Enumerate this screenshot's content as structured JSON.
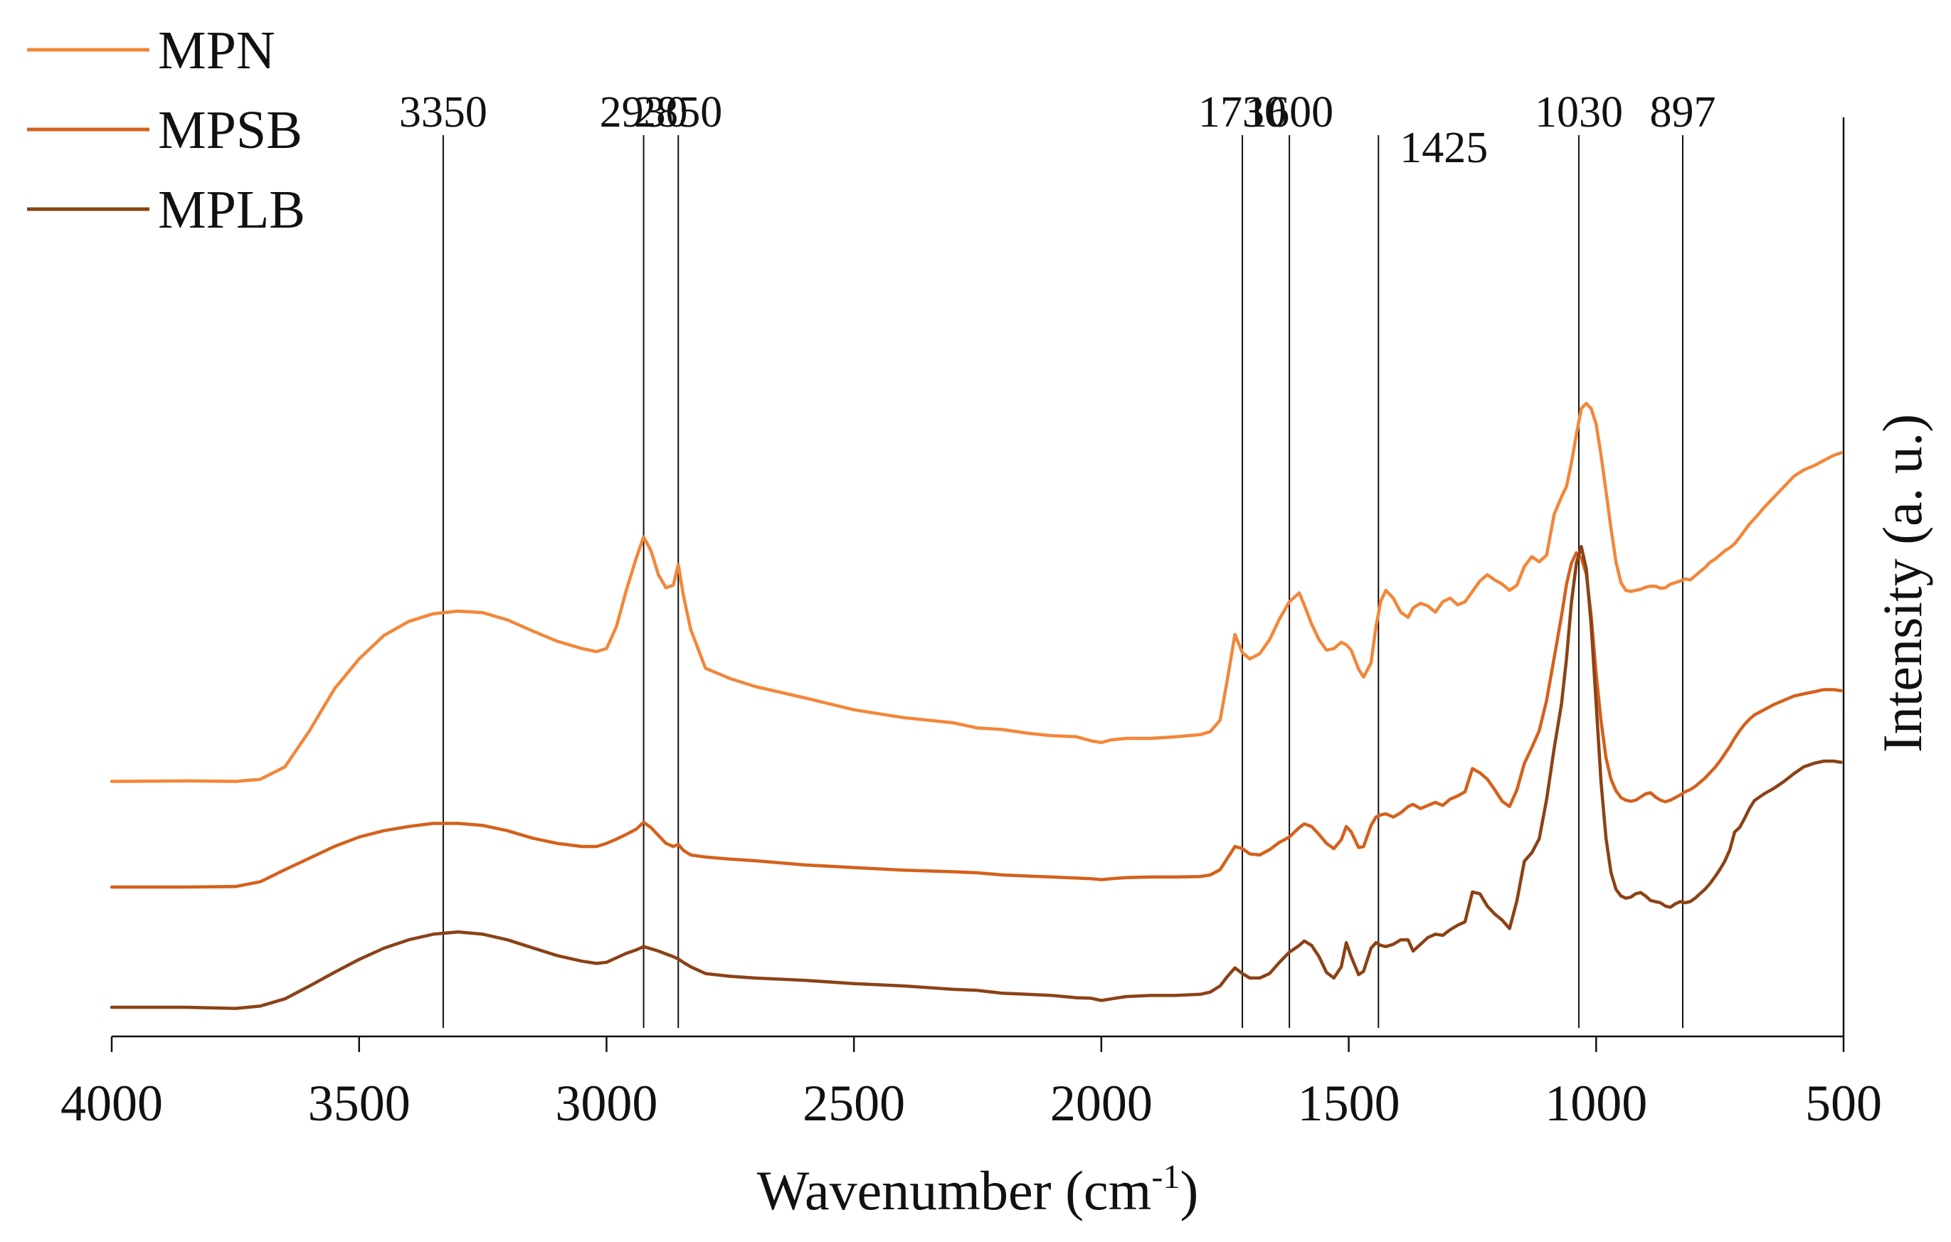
{
  "chart_data": {
    "type": "line",
    "title": "",
    "xlabel": "Wavenumber (cm",
    "xlabel_sup": "-1",
    "xlabel_close": ")",
    "ylabel": "Intensity (a. u.)",
    "xlim": [
      4000,
      500
    ],
    "ylim": [
      0,
      1
    ],
    "x_reversed": true,
    "x_ticks": [
      4000,
      3500,
      3000,
      2500,
      2000,
      1500,
      1000,
      500
    ],
    "x_tick_labels": [
      "4000",
      "3500",
      "3000",
      "2500",
      "2000",
      "1500",
      "1000",
      "500"
    ],
    "legend_position": "top-left",
    "peak_markers": [
      {
        "x": 3330,
        "label": "3350"
      },
      {
        "x": 2925,
        "label": "2930"
      },
      {
        "x": 2855,
        "label": "2850"
      },
      {
        "x": 1715,
        "label": "1730"
      },
      {
        "x": 1620,
        "label": "1600"
      },
      {
        "x": 1440,
        "label": "1425"
      },
      {
        "x": 1035,
        "label": "1030"
      },
      {
        "x": 825,
        "label": "897"
      }
    ],
    "series": [
      {
        "name": "MPN",
        "color": "#F2873A",
        "x": [
          4000,
          3850,
          3750,
          3700,
          3650,
          3600,
          3550,
          3500,
          3450,
          3400,
          3350,
          3300,
          3250,
          3200,
          3150,
          3100,
          3050,
          3020,
          3000,
          2980,
          2960,
          2940,
          2925,
          2910,
          2895,
          2880,
          2865,
          2855,
          2845,
          2830,
          2800,
          2750,
          2700,
          2600,
          2500,
          2400,
          2300,
          2250,
          2200,
          2150,
          2100,
          2050,
          2020,
          2000,
          1980,
          1950,
          1900,
          1850,
          1800,
          1780,
          1760,
          1745,
          1730,
          1715,
          1700,
          1680,
          1660,
          1640,
          1620,
          1600,
          1590,
          1575,
          1560,
          1545,
          1530,
          1515,
          1505,
          1495,
          1480,
          1470,
          1455,
          1445,
          1435,
          1425,
          1410,
          1395,
          1380,
          1370,
          1355,
          1340,
          1325,
          1310,
          1295,
          1280,
          1265,
          1250,
          1235,
          1220,
          1205,
          1190,
          1175,
          1160,
          1145,
          1130,
          1115,
          1100,
          1085,
          1070,
          1060,
          1050,
          1040,
          1030,
          1020,
          1010,
          1000,
          990,
          980,
          970,
          960,
          950,
          940,
          930,
          920,
          910,
          900,
          890,
          880,
          870,
          860,
          850,
          840,
          830,
          820,
          810,
          800,
          790,
          780,
          770,
          760,
          750,
          740,
          730,
          720,
          710,
          700,
          690,
          680,
          660,
          640,
          620,
          600,
          580,
          560,
          540,
          520,
          505
        ],
        "y": [
          0.272,
          0.273,
          0.272,
          0.276,
          0.3,
          0.37,
          0.45,
          0.508,
          0.553,
          0.58,
          0.595,
          0.6,
          0.597,
          0.583,
          0.562,
          0.542,
          0.528,
          0.522,
          0.528,
          0.57,
          0.64,
          0.702,
          0.743,
          0.716,
          0.67,
          0.645,
          0.65,
          0.69,
          0.632,
          0.565,
          0.49,
          0.47,
          0.455,
          0.433,
          0.41,
          0.395,
          0.385,
          0.375,
          0.372,
          0.365,
          0.36,
          0.358,
          0.35,
          0.347,
          0.352,
          0.355,
          0.355,
          0.358,
          0.362,
          0.368,
          0.39,
          0.47,
          0.555,
          0.52,
          0.508,
          0.518,
          0.545,
          0.585,
          0.618,
          0.635,
          0.612,
          0.575,
          0.545,
          0.525,
          0.528,
          0.54,
          0.535,
          0.525,
          0.488,
          0.473,
          0.5,
          0.57,
          0.62,
          0.64,
          0.625,
          0.598,
          0.588,
          0.606,
          0.615,
          0.61,
          0.598,
          0.618,
          0.625,
          0.612,
          0.618,
          0.638,
          0.658,
          0.67,
          0.66,
          0.652,
          0.64,
          0.65,
          0.686,
          0.705,
          0.695,
          0.708,
          0.786,
          0.82,
          0.84,
          0.885,
          0.94,
          0.99,
          1.0,
          0.99,
          0.96,
          0.9,
          0.83,
          0.76,
          0.695,
          0.655,
          0.64,
          0.638,
          0.64,
          0.642,
          0.646,
          0.648,
          0.648,
          0.644,
          0.645,
          0.652,
          0.655,
          0.658,
          0.662,
          0.66,
          0.668,
          0.676,
          0.684,
          0.694,
          0.7,
          0.708,
          0.716,
          0.722,
          0.73,
          0.742,
          0.755,
          0.768,
          0.778,
          0.8,
          0.82,
          0.84,
          0.86,
          0.872,
          0.88,
          0.89,
          0.9,
          0.905
        ]
      },
      {
        "name": "MPSB",
        "color": "#D4611C",
        "x": [
          4000,
          3850,
          3750,
          3700,
          3650,
          3600,
          3550,
          3500,
          3450,
          3400,
          3350,
          3300,
          3250,
          3200,
          3150,
          3100,
          3050,
          3020,
          3000,
          2980,
          2960,
          2940,
          2925,
          2910,
          2895,
          2880,
          2865,
          2855,
          2845,
          2830,
          2800,
          2750,
          2700,
          2600,
          2500,
          2400,
          2300,
          2250,
          2200,
          2150,
          2100,
          2050,
          2020,
          2000,
          1980,
          1950,
          1900,
          1850,
          1800,
          1780,
          1760,
          1745,
          1730,
          1715,
          1700,
          1680,
          1660,
          1640,
          1620,
          1600,
          1590,
          1575,
          1560,
          1545,
          1530,
          1515,
          1505,
          1495,
          1480,
          1470,
          1455,
          1445,
          1435,
          1425,
          1410,
          1395,
          1380,
          1370,
          1355,
          1340,
          1325,
          1310,
          1295,
          1280,
          1265,
          1250,
          1235,
          1220,
          1205,
          1190,
          1175,
          1160,
          1145,
          1130,
          1115,
          1100,
          1085,
          1070,
          1060,
          1050,
          1040,
          1030,
          1020,
          1010,
          1000,
          990,
          980,
          970,
          960,
          950,
          940,
          930,
          920,
          910,
          900,
          890,
          880,
          870,
          860,
          850,
          840,
          830,
          820,
          810,
          800,
          790,
          780,
          770,
          760,
          750,
          740,
          730,
          720,
          710,
          700,
          690,
          680,
          660,
          640,
          620,
          600,
          580,
          560,
          540,
          520,
          505
        ],
        "y": [
          0.185,
          0.185,
          0.186,
          0.195,
          0.218,
          0.24,
          0.262,
          0.28,
          0.292,
          0.3,
          0.306,
          0.306,
          0.302,
          0.292,
          0.278,
          0.268,
          0.262,
          0.262,
          0.268,
          0.276,
          0.285,
          0.295,
          0.308,
          0.298,
          0.283,
          0.268,
          0.262,
          0.266,
          0.255,
          0.246,
          0.242,
          0.238,
          0.235,
          0.227,
          0.222,
          0.217,
          0.214,
          0.212,
          0.208,
          0.206,
          0.204,
          0.202,
          0.201,
          0.199,
          0.201,
          0.203,
          0.204,
          0.204,
          0.205,
          0.208,
          0.218,
          0.24,
          0.262,
          0.258,
          0.248,
          0.246,
          0.256,
          0.27,
          0.28,
          0.298,
          0.305,
          0.3,
          0.285,
          0.268,
          0.258,
          0.275,
          0.3,
          0.29,
          0.26,
          0.262,
          0.302,
          0.318,
          0.322,
          0.324,
          0.318,
          0.326,
          0.338,
          0.342,
          0.334,
          0.34,
          0.346,
          0.34,
          0.352,
          0.358,
          0.366,
          0.41,
          0.402,
          0.39,
          0.37,
          0.348,
          0.338,
          0.37,
          0.42,
          0.45,
          0.482,
          0.54,
          0.62,
          0.7,
          0.76,
          0.8,
          0.82,
          0.81,
          0.78,
          0.7,
          0.59,
          0.5,
          0.43,
          0.39,
          0.368,
          0.355,
          0.35,
          0.348,
          0.35,
          0.356,
          0.362,
          0.364,
          0.356,
          0.35,
          0.347,
          0.35,
          0.355,
          0.36,
          0.366,
          0.37,
          0.376,
          0.384,
          0.392,
          0.402,
          0.412,
          0.424,
          0.438,
          0.452,
          0.468,
          0.482,
          0.494,
          0.504,
          0.512,
          0.522,
          0.532,
          0.54,
          0.548,
          0.552,
          0.556,
          0.56,
          0.56,
          0.558
        ]
      },
      {
        "name": "MPLB",
        "color": "#8B4215",
        "x": [
          4000,
          3850,
          3750,
          3700,
          3650,
          3600,
          3550,
          3500,
          3450,
          3400,
          3350,
          3300,
          3250,
          3200,
          3150,
          3100,
          3050,
          3020,
          3000,
          2980,
          2960,
          2940,
          2925,
          2910,
          2895,
          2880,
          2865,
          2855,
          2845,
          2830,
          2800,
          2750,
          2700,
          2600,
          2500,
          2400,
          2300,
          2250,
          2200,
          2150,
          2100,
          2050,
          2020,
          2000,
          1980,
          1950,
          1900,
          1850,
          1800,
          1780,
          1760,
          1745,
          1730,
          1715,
          1700,
          1680,
          1660,
          1640,
          1620,
          1600,
          1590,
          1575,
          1560,
          1545,
          1530,
          1515,
          1505,
          1495,
          1480,
          1470,
          1455,
          1445,
          1435,
          1425,
          1410,
          1395,
          1380,
          1370,
          1355,
          1340,
          1325,
          1310,
          1295,
          1280,
          1265,
          1250,
          1235,
          1220,
          1205,
          1190,
          1175,
          1160,
          1145,
          1130,
          1115,
          1100,
          1085,
          1070,
          1060,
          1050,
          1040,
          1030,
          1020,
          1010,
          1000,
          990,
          980,
          970,
          960,
          950,
          940,
          930,
          920,
          910,
          900,
          890,
          880,
          870,
          860,
          850,
          840,
          830,
          820,
          810,
          800,
          790,
          780,
          770,
          760,
          750,
          740,
          730,
          720,
          710,
          700,
          690,
          680,
          660,
          640,
          620,
          600,
          580,
          560,
          540,
          520,
          505
        ],
        "y": [
          0.06,
          0.06,
          0.058,
          0.062,
          0.075,
          0.098,
          0.122,
          0.145,
          0.165,
          0.18,
          0.19,
          0.194,
          0.19,
          0.18,
          0.166,
          0.152,
          0.142,
          0.138,
          0.14,
          0.148,
          0.156,
          0.162,
          0.168,
          0.164,
          0.16,
          0.155,
          0.15,
          0.146,
          0.14,
          0.132,
          0.12,
          0.115,
          0.112,
          0.108,
          0.102,
          0.098,
          0.092,
          0.09,
          0.085,
          0.083,
          0.081,
          0.077,
          0.076,
          0.072,
          0.075,
          0.079,
          0.081,
          0.081,
          0.083,
          0.087,
          0.098,
          0.115,
          0.13,
          0.12,
          0.112,
          0.112,
          0.12,
          0.14,
          0.158,
          0.17,
          0.178,
          0.17,
          0.15,
          0.122,
          0.112,
          0.132,
          0.175,
          0.15,
          0.118,
          0.124,
          0.165,
          0.175,
          0.17,
          0.168,
          0.172,
          0.18,
          0.18,
          0.16,
          0.172,
          0.184,
          0.19,
          0.188,
          0.198,
          0.206,
          0.212,
          0.265,
          0.262,
          0.24,
          0.226,
          0.215,
          0.2,
          0.25,
          0.32,
          0.335,
          0.36,
          0.43,
          0.52,
          0.6,
          0.68,
          0.78,
          0.85,
          0.88,
          0.84,
          0.74,
          0.6,
          0.46,
          0.36,
          0.3,
          0.27,
          0.258,
          0.254,
          0.256,
          0.262,
          0.264,
          0.258,
          0.25,
          0.248,
          0.246,
          0.24,
          0.238,
          0.244,
          0.248,
          0.246,
          0.248,
          0.254,
          0.262,
          0.27,
          0.28,
          0.292,
          0.305,
          0.32,
          0.34,
          0.372,
          0.38,
          0.396,
          0.414,
          0.428,
          0.44,
          0.45,
          0.462,
          0.476,
          0.488,
          0.494,
          0.498,
          0.498,
          0.496
        ]
      }
    ]
  }
}
